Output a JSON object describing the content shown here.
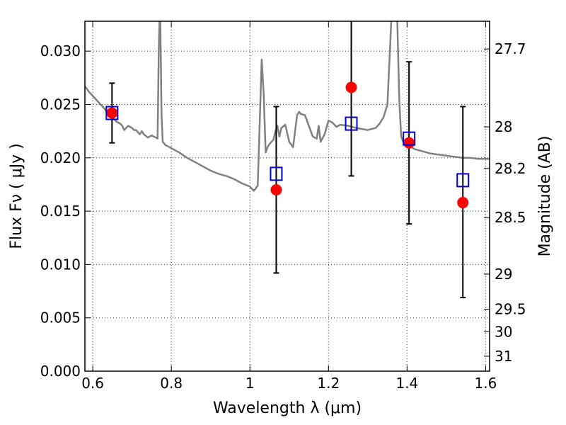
{
  "chart_data": {
    "type": "scatter",
    "title": "",
    "xlabel": "Wavelength  λ (μm)",
    "ylabel": "Flux  Fν  ( μJy )",
    "ylabel_right": "Magnitude (AB)",
    "xlim": [
      0.58,
      1.61
    ],
    "ylim": [
      0.0,
      0.0328
    ],
    "grid": true,
    "x_ticks": [
      0.6,
      0.8,
      1.0,
      1.2,
      1.4,
      1.6
    ],
    "x_tick_labels": [
      "0.6",
      "0.8",
      "1",
      "1.2",
      "1.4",
      "1.6"
    ],
    "y_ticks": [
      0.0,
      0.005,
      0.01,
      0.015,
      0.02,
      0.025,
      0.03
    ],
    "y_tick_labels": [
      "0.000",
      "0.005",
      "0.010",
      "0.015",
      "0.020",
      "0.025",
      "0.030"
    ],
    "right_ticks": [
      {
        "label": "27.7",
        "flux": 0.0302
      },
      {
        "label": "28",
        "flux": 0.0229
      },
      {
        "label": "28.2",
        "flux": 0.019
      },
      {
        "label": "28.5",
        "flux": 0.0144
      },
      {
        "label": "29",
        "flux": 0.0091
      },
      {
        "label": "29.5",
        "flux": 0.0058
      },
      {
        "label": "30",
        "flux": 0.0037
      },
      {
        "label": "31",
        "flux": 0.0014
      }
    ],
    "colors": {
      "model": "#808080",
      "observed": "#ff0000",
      "model_photometry": "#0000cc",
      "error_bars": "#000000"
    },
    "series": [
      {
        "kind": "model_spectrum",
        "x": [
          0.58,
          0.59,
          0.6,
          0.61,
          0.62,
          0.63,
          0.64,
          0.65,
          0.66,
          0.67,
          0.675,
          0.68,
          0.69,
          0.7,
          0.705,
          0.71,
          0.72,
          0.725,
          0.73,
          0.74,
          0.745,
          0.75,
          0.76,
          0.765,
          0.768,
          0.77,
          0.772,
          0.775,
          0.778,
          0.785,
          0.8,
          0.82,
          0.84,
          0.86,
          0.88,
          0.9,
          0.92,
          0.94,
          0.96,
          0.98,
          1.0,
          1.01,
          1.02,
          1.03,
          1.035,
          1.04,
          1.045,
          1.05,
          1.06,
          1.065,
          1.07,
          1.075,
          1.08,
          1.09,
          1.1,
          1.11,
          1.12,
          1.125,
          1.13,
          1.14,
          1.15,
          1.16,
          1.17,
          1.175,
          1.18,
          1.19,
          1.2,
          1.21,
          1.22,
          1.23,
          1.25,
          1.27,
          1.3,
          1.32,
          1.33,
          1.335,
          1.34,
          1.35,
          1.355,
          1.36,
          1.365,
          1.37,
          1.375,
          1.38,
          1.385,
          1.39,
          1.4,
          1.41,
          1.42,
          1.44,
          1.46,
          1.48,
          1.5,
          1.52,
          1.54,
          1.56,
          1.58,
          1.6,
          1.61
        ],
        "y": [
          0.0267,
          0.0262,
          0.0258,
          0.0254,
          0.025,
          0.0246,
          0.024,
          0.0238,
          0.0234,
          0.0232,
          0.023,
          0.0226,
          0.023,
          0.0228,
          0.0226,
          0.0226,
          0.0222,
          0.0225,
          0.0222,
          0.0219,
          0.022,
          0.0221,
          0.0219,
          0.0218,
          0.03,
          0.033,
          0.033,
          0.024,
          0.0215,
          0.0212,
          0.0209,
          0.0205,
          0.02,
          0.0196,
          0.0192,
          0.0188,
          0.0185,
          0.0183,
          0.018,
          0.0176,
          0.0173,
          0.0169,
          0.0174,
          0.0292,
          0.026,
          0.0205,
          0.021,
          0.0213,
          0.0217,
          0.0225,
          0.023,
          0.022,
          0.0228,
          0.0231,
          0.0215,
          0.021,
          0.024,
          0.0243,
          0.0241,
          0.024,
          0.023,
          0.022,
          0.0218,
          0.023,
          0.0215,
          0.0222,
          0.0235,
          0.0233,
          0.0229,
          0.0231,
          0.023,
          0.0228,
          0.0226,
          0.0228,
          0.0232,
          0.0235,
          0.0238,
          0.025,
          0.029,
          0.033,
          0.033,
          0.033,
          0.033,
          0.0255,
          0.022,
          0.0215,
          0.0212,
          0.021,
          0.0208,
          0.0206,
          0.0204,
          0.0203,
          0.0202,
          0.0201,
          0.02,
          0.02,
          0.0199,
          0.0199,
          0.0199
        ]
      },
      {
        "kind": "observed",
        "marker": "circle",
        "x": [
          0.649,
          1.067,
          1.258,
          1.405,
          1.542
        ],
        "y": [
          0.0242,
          0.017,
          0.0266,
          0.0214,
          0.0158
        ],
        "yerr_low": [
          0.0214,
          0.0092,
          0.0183,
          0.0138,
          0.0069
        ],
        "yerr_high": [
          0.027,
          0.0248,
          0.033,
          0.029,
          0.0248
        ]
      },
      {
        "kind": "model_photometry",
        "marker": "square",
        "x": [
          0.649,
          1.067,
          1.258,
          1.405,
          1.542
        ],
        "y": [
          0.0242,
          0.0185,
          0.0232,
          0.0218,
          0.0179
        ]
      }
    ]
  }
}
